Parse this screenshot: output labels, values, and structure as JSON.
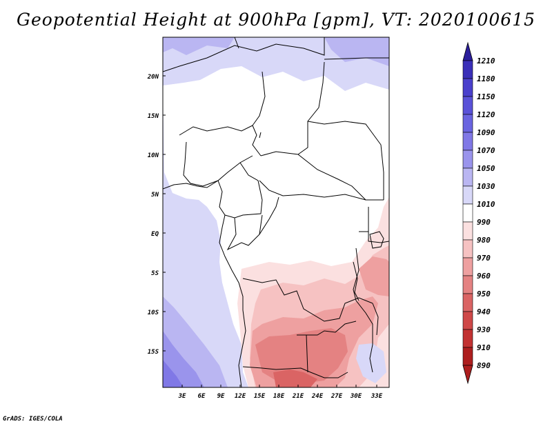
{
  "title": "Geopotential Height at 900hPa [gpm], VT: 2020100615",
  "credit": "GrADS: IGES/COLA",
  "map": {
    "lat_labels": [
      "20N",
      "15N",
      "10N",
      "5N",
      "EQ",
      "5S",
      "10S",
      "15S"
    ],
    "lon_labels": [
      "3E",
      "6E",
      "9E",
      "12E",
      "15E",
      "18E",
      "21E",
      "24E",
      "27E",
      "30E",
      "33E"
    ]
  },
  "colorbar": {
    "levels": [
      "1210",
      "1180",
      "1150",
      "1120",
      "1090",
      "1070",
      "1050",
      "1030",
      "1010",
      "990",
      "980",
      "970",
      "960",
      "950",
      "940",
      "930",
      "910",
      "890"
    ],
    "colors": {
      "c1210": "#2b1e9c",
      "c1180": "#3a2fb8",
      "c1150": "#4a40cc",
      "c1120": "#5a52d8",
      "c1090": "#6a64e0",
      "c1070": "#8078e6",
      "c1050": "#9a94ec",
      "c1030": "#bab6f2",
      "c1010": "#d8d8f8",
      "c990": "#ffffff",
      "c980": "#fbe0e0",
      "c970": "#f6c2c2",
      "c960": "#eea0a0",
      "c950": "#e48282",
      "c940": "#da6464",
      "c930": "#cf4848",
      "c910": "#c23232",
      "c890": "#ad1e1e"
    }
  }
}
